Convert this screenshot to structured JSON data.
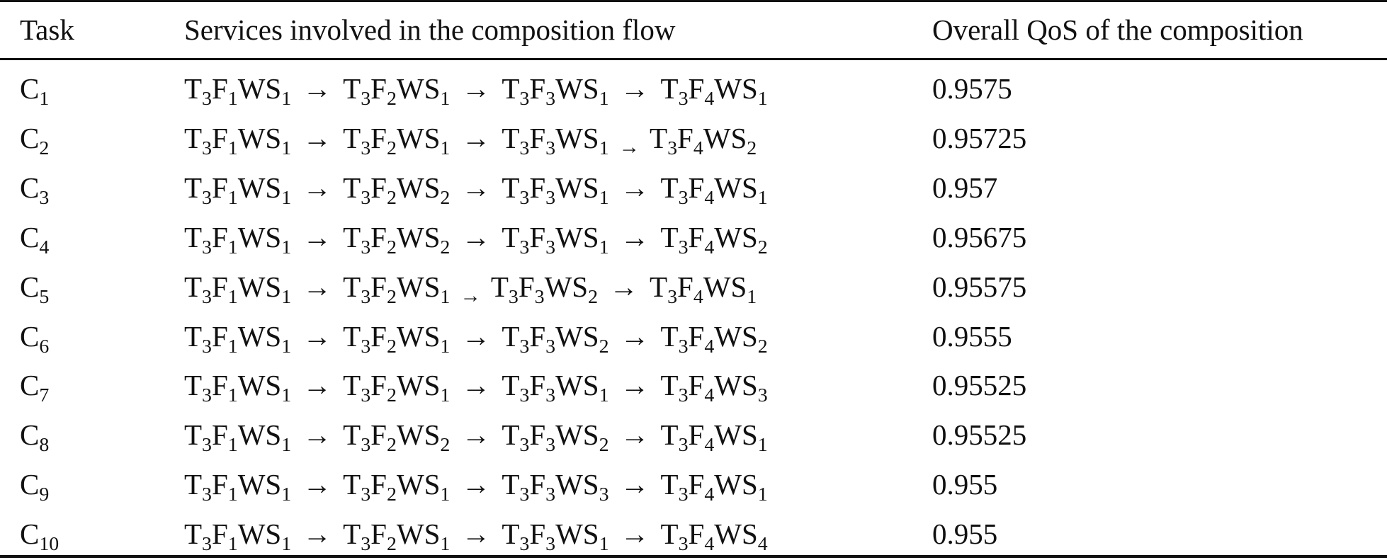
{
  "table": {
    "headers": {
      "task": "Task",
      "flow": "Services involved in the composition flow",
      "qos": "Overall QoS of the composition"
    },
    "arrow": "→",
    "rows": [
      {
        "task": {
          "base": "C",
          "sub": "1"
        },
        "flow": [
          [
            "1",
            "1"
          ],
          [
            "2",
            "1"
          ],
          [
            "3",
            "1"
          ],
          [
            "4",
            "1"
          ]
        ],
        "small_arrow_index": -1,
        "qos": "0.9575"
      },
      {
        "task": {
          "base": "C",
          "sub": "2"
        },
        "flow": [
          [
            "1",
            "1"
          ],
          [
            "2",
            "1"
          ],
          [
            "3",
            "1"
          ],
          [
            "4",
            "2"
          ]
        ],
        "small_arrow_index": 2,
        "qos": "0.95725"
      },
      {
        "task": {
          "base": "C",
          "sub": "3"
        },
        "flow": [
          [
            "1",
            "1"
          ],
          [
            "2",
            "2"
          ],
          [
            "3",
            "1"
          ],
          [
            "4",
            "1"
          ]
        ],
        "small_arrow_index": -1,
        "qos": "0.957"
      },
      {
        "task": {
          "base": "C",
          "sub": "4"
        },
        "flow": [
          [
            "1",
            "1"
          ],
          [
            "2",
            "2"
          ],
          [
            "3",
            "1"
          ],
          [
            "4",
            "2"
          ]
        ],
        "small_arrow_index": -1,
        "qos": "0.95675"
      },
      {
        "task": {
          "base": "C",
          "sub": "5"
        },
        "flow": [
          [
            "1",
            "1"
          ],
          [
            "2",
            "1"
          ],
          [
            "3",
            "2"
          ],
          [
            "4",
            "1"
          ]
        ],
        "small_arrow_index": 1,
        "qos": "0.95575"
      },
      {
        "task": {
          "base": "C",
          "sub": "6"
        },
        "flow": [
          [
            "1",
            "1"
          ],
          [
            "2",
            "1"
          ],
          [
            "3",
            "2"
          ],
          [
            "4",
            "2"
          ]
        ],
        "small_arrow_index": -1,
        "qos": "0.9555"
      },
      {
        "task": {
          "base": "C",
          "sub": "7"
        },
        "flow": [
          [
            "1",
            "1"
          ],
          [
            "2",
            "1"
          ],
          [
            "3",
            "1"
          ],
          [
            "4",
            "3"
          ]
        ],
        "small_arrow_index": -1,
        "qos": "0.95525"
      },
      {
        "task": {
          "base": "C",
          "sub": "8"
        },
        "flow": [
          [
            "1",
            "1"
          ],
          [
            "2",
            "2"
          ],
          [
            "3",
            "2"
          ],
          [
            "4",
            "1"
          ]
        ],
        "small_arrow_index": -1,
        "qos": "0.95525"
      },
      {
        "task": {
          "base": "C",
          "sub": "9"
        },
        "flow": [
          [
            "1",
            "1"
          ],
          [
            "2",
            "1"
          ],
          [
            "3",
            "3"
          ],
          [
            "4",
            "1"
          ]
        ],
        "small_arrow_index": -1,
        "qos": "0.955"
      },
      {
        "task": {
          "base": "C",
          "sub": "10"
        },
        "flow": [
          [
            "1",
            "1"
          ],
          [
            "2",
            "1"
          ],
          [
            "3",
            "1"
          ],
          [
            "4",
            "4"
          ]
        ],
        "small_arrow_index": -1,
        "qos": "0.955"
      }
    ]
  }
}
